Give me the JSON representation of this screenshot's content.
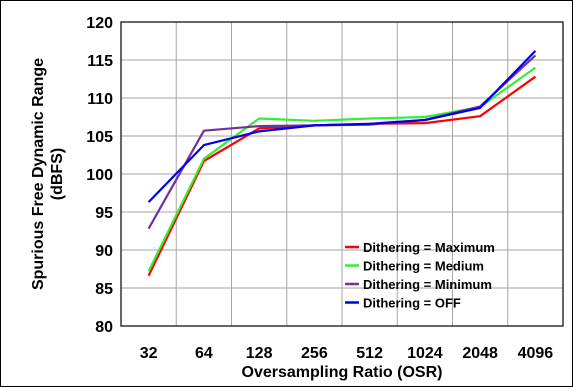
{
  "chart_data": {
    "type": "line",
    "title": "",
    "xlabel": "Oversampling Ratio (OSR)",
    "ylabel_lines": [
      "Spurious Free Dynamic Range",
      "(dBFS)"
    ],
    "categories": [
      "32",
      "64",
      "128",
      "256",
      "512",
      "1024",
      "2048",
      "4096"
    ],
    "ylim": [
      80,
      120
    ],
    "yticks": [
      80,
      85,
      90,
      95,
      100,
      105,
      110,
      115,
      120
    ],
    "grid": true,
    "legend_position": "bottom-right",
    "series": [
      {
        "name": "Dithering = Maximum",
        "color": "#ff0000",
        "values": [
          86.6,
          101.7,
          106.0,
          106.4,
          106.6,
          106.7,
          107.6,
          112.8
        ]
      },
      {
        "name": "Dithering = Medium",
        "color": "#33ee33",
        "values": [
          87.2,
          102.0,
          107.3,
          107.0,
          107.3,
          107.5,
          108.8,
          114.0
        ]
      },
      {
        "name": "Dithering = Minimum",
        "color": "#7030a0",
        "values": [
          92.8,
          105.7,
          106.3,
          106.4,
          106.5,
          107.1,
          108.9,
          115.6
        ]
      },
      {
        "name": "Dithering = OFF",
        "color": "#0000ee",
        "values": [
          96.3,
          103.8,
          105.6,
          106.4,
          106.6,
          107.1,
          108.7,
          116.2
        ]
      }
    ]
  }
}
